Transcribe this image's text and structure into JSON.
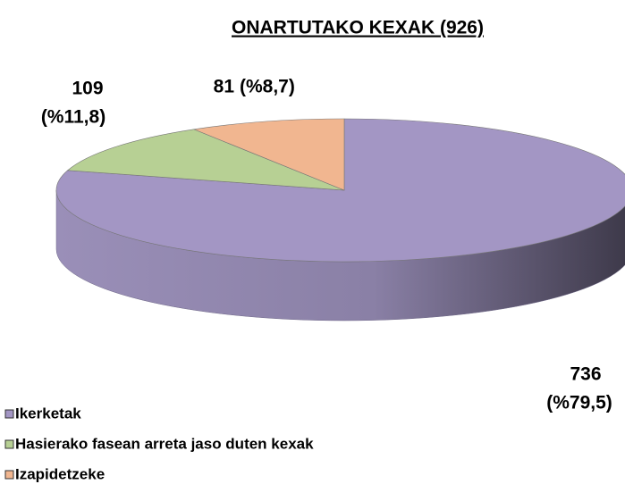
{
  "chart_data": {
    "type": "pie",
    "title": "ONARTUTAKO KEXAK (926)",
    "categories": [
      "Ikerketak",
      "Hasierako fasean arreta jaso duten kexak",
      "Izapidetzeke"
    ],
    "values": [
      736,
      109,
      81
    ],
    "percent_labels": [
      "(%79,5)",
      "(%11,8)",
      "(%8,7)"
    ],
    "colors": [
      "#a396c4",
      "#b7d094",
      "#f1b690"
    ],
    "legend": "bottom-left"
  }
}
